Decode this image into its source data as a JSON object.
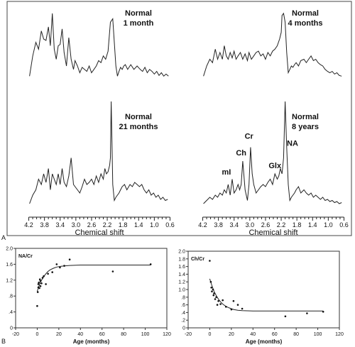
{
  "figure": {
    "panel_a_letter": "A",
    "panel_b_letter": "B"
  },
  "chart_data": [
    {
      "type": "line",
      "panel": "A",
      "xlabel": "Chemical shift",
      "xticks": [
        4.2,
        3.8,
        3.4,
        3.0,
        2.6,
        2.2,
        1.8,
        1.4,
        1.0,
        0.6
      ],
      "xtick_labels": [
        "4.2",
        "3.8",
        "3.4",
        "3.0",
        "2.6",
        "2.2",
        "1.8",
        "1.4",
        "1.0",
        "0.6"
      ],
      "xlim": [
        4.3,
        0.5
      ],
      "spectra": [
        {
          "label_line1": "Normal",
          "label_line2": "1 month",
          "x": [
            4.18,
            4.1,
            4.02,
            3.95,
            3.88,
            3.82,
            3.76,
            3.7,
            3.65,
            3.6,
            3.55,
            3.5,
            3.45,
            3.4,
            3.35,
            3.3,
            3.24,
            3.18,
            3.12,
            3.06,
            3.02,
            2.96,
            2.9,
            2.84,
            2.78,
            2.72,
            2.66,
            2.6,
            2.54,
            2.48,
            2.42,
            2.36,
            2.3,
            2.24,
            2.18,
            2.12,
            2.06,
            2.02,
            1.98,
            1.94,
            1.9,
            1.86,
            1.82,
            1.78,
            1.74,
            1.68,
            1.6,
            1.52,
            1.44,
            1.36,
            1.3,
            1.24,
            1.18,
            1.12,
            1.06,
            1.0,
            0.94,
            0.88,
            0.82,
            0.76,
            0.7,
            0.64
          ],
          "y": [
            0.05,
            0.35,
            0.55,
            0.45,
            0.72,
            0.6,
            0.58,
            0.78,
            0.5,
            0.98,
            0.45,
            0.3,
            0.5,
            0.52,
            0.75,
            0.4,
            0.2,
            0.62,
            0.3,
            0.15,
            0.28,
            0.2,
            0.1,
            0.18,
            0.15,
            0.12,
            0.2,
            0.1,
            0.15,
            0.2,
            0.28,
            0.25,
            0.35,
            0.3,
            0.42,
            0.85,
            0.9,
            0.55,
            0.2,
            0.05,
            0.12,
            0.18,
            0.15,
            0.2,
            0.22,
            0.15,
            0.22,
            0.15,
            0.2,
            0.15,
            0.12,
            0.18,
            0.1,
            0.15,
            0.12,
            0.08,
            0.12,
            0.06,
            0.1,
            0.05,
            0.08,
            0.05
          ]
        },
        {
          "label_line1": "Normal",
          "label_line2": "4 months",
          "x": [
            4.18,
            4.1,
            4.02,
            3.95,
            3.88,
            3.82,
            3.76,
            3.7,
            3.65,
            3.6,
            3.55,
            3.5,
            3.45,
            3.4,
            3.35,
            3.3,
            3.24,
            3.18,
            3.12,
            3.06,
            3.02,
            2.96,
            2.9,
            2.84,
            2.78,
            2.72,
            2.66,
            2.6,
            2.54,
            2.48,
            2.42,
            2.36,
            2.3,
            2.24,
            2.2,
            2.18,
            2.14,
            2.1,
            2.06,
            2.02,
            1.98,
            1.94,
            1.9,
            1.86,
            1.82,
            1.76,
            1.7,
            1.62,
            1.56,
            1.5,
            1.44,
            1.38,
            1.32,
            1.26,
            1.2,
            1.14,
            1.08,
            1.02,
            0.96,
            0.9,
            0.84,
            0.78,
            0.72,
            0.66
          ],
          "y": [
            0.05,
            0.2,
            0.3,
            0.25,
            0.45,
            0.3,
            0.4,
            0.3,
            0.5,
            0.35,
            0.3,
            0.4,
            0.32,
            0.42,
            0.3,
            0.35,
            0.4,
            0.3,
            0.38,
            0.28,
            0.4,
            0.3,
            0.35,
            0.4,
            0.42,
            0.35,
            0.38,
            0.3,
            0.4,
            0.35,
            0.42,
            0.45,
            0.5,
            0.6,
            0.7,
            0.95,
            0.98,
            0.85,
            0.4,
            0.1,
            0.15,
            0.2,
            0.18,
            0.22,
            0.25,
            0.2,
            0.28,
            0.3,
            0.25,
            0.3,
            0.35,
            0.28,
            0.3,
            0.25,
            0.22,
            0.2,
            0.15,
            0.12,
            0.1,
            0.12,
            0.08,
            0.1,
            0.06,
            0.05
          ]
        },
        {
          "label_line1": "Normal",
          "label_line2": "21 months",
          "x": [
            4.18,
            4.1,
            4.02,
            3.95,
            3.88,
            3.82,
            3.76,
            3.7,
            3.65,
            3.6,
            3.55,
            3.5,
            3.45,
            3.4,
            3.35,
            3.3,
            3.24,
            3.18,
            3.12,
            3.06,
            3.02,
            2.96,
            2.9,
            2.84,
            2.78,
            2.72,
            2.66,
            2.6,
            2.54,
            2.48,
            2.42,
            2.36,
            2.3,
            2.26,
            2.22,
            2.18,
            2.14,
            2.12,
            2.1,
            2.08,
            2.06,
            2.02,
            1.98,
            1.94,
            1.9,
            1.86,
            1.82,
            1.76,
            1.7,
            1.62,
            1.56,
            1.5,
            1.44,
            1.38,
            1.32,
            1.26,
            1.2,
            1.14,
            1.08,
            1.02,
            0.96,
            0.9,
            0.84,
            0.78,
            0.72,
            0.66
          ],
          "y": [
            0.02,
            0.1,
            0.15,
            0.25,
            0.2,
            0.3,
            0.22,
            0.35,
            0.15,
            0.3,
            0.25,
            0.2,
            0.3,
            0.2,
            0.35,
            0.22,
            0.18,
            0.28,
            0.45,
            0.2,
            0.18,
            0.15,
            0.12,
            0.18,
            0.25,
            0.2,
            0.22,
            0.25,
            0.2,
            0.28,
            0.22,
            0.3,
            0.25,
            0.35,
            0.3,
            0.32,
            0.38,
            0.45,
            0.98,
            0.6,
            0.2,
            0.05,
            0.08,
            0.1,
            0.12,
            0.15,
            0.18,
            0.2,
            0.15,
            0.2,
            0.18,
            0.22,
            0.2,
            0.18,
            0.2,
            0.15,
            0.12,
            0.15,
            0.1,
            0.12,
            0.08,
            0.1,
            0.06,
            0.08,
            0.05,
            0.06
          ]
        },
        {
          "label_line1": "Normal",
          "label_line2": "8 years",
          "x": [
            4.18,
            4.1,
            4.02,
            3.95,
            3.88,
            3.82,
            3.76,
            3.7,
            3.65,
            3.6,
            3.55,
            3.5,
            3.45,
            3.4,
            3.35,
            3.3,
            3.26,
            3.22,
            3.18,
            3.12,
            3.06,
            3.02,
            2.98,
            2.94,
            2.9,
            2.84,
            2.78,
            2.72,
            2.66,
            2.6,
            2.54,
            2.48,
            2.42,
            2.36,
            2.3,
            2.26,
            2.22,
            2.18,
            2.14,
            2.1,
            2.06,
            2.02,
            1.98,
            1.94,
            1.9,
            1.86,
            1.82,
            1.76,
            1.7,
            1.62,
            1.56,
            1.5,
            1.44,
            1.38,
            1.32,
            1.26,
            1.2,
            1.14,
            1.08,
            1.02,
            0.96,
            0.9,
            0.84,
            0.78,
            0.72,
            0.66
          ],
          "y": [
            0.02,
            0.05,
            0.08,
            0.06,
            0.1,
            0.08,
            0.12,
            0.1,
            0.15,
            0.12,
            0.2,
            0.1,
            0.25,
            0.12,
            0.15,
            0.2,
            0.15,
            0.2,
            0.42,
            0.15,
            0.05,
            0.2,
            0.55,
            0.3,
            0.2,
            0.12,
            0.15,
            0.18,
            0.2,
            0.18,
            0.22,
            0.25,
            0.2,
            0.3,
            0.25,
            0.28,
            0.35,
            0.3,
            0.45,
            0.98,
            0.55,
            0.2,
            0.05,
            0.08,
            0.1,
            0.12,
            0.15,
            0.18,
            0.12,
            0.15,
            0.12,
            0.1,
            0.12,
            0.08,
            0.1,
            0.08,
            0.06,
            0.08,
            0.05,
            0.06,
            0.04,
            0.05,
            0.03,
            0.04,
            0.02,
            0.03
          ]
        }
      ],
      "peak_labels": [
        {
          "text": "mI",
          "ppm": 3.56
        },
        {
          "text": "Ch",
          "ppm": 3.22
        },
        {
          "text": "Cr",
          "ppm": 3.02
        },
        {
          "text": "Glx",
          "ppm": 2.36
        },
        {
          "text": "NA",
          "ppm": 2.02
        }
      ]
    },
    {
      "type": "scatter",
      "panel": "B-left",
      "title": "NA/Cr",
      "xlabel": "Age (months)",
      "xlim": [
        -20,
        120
      ],
      "ylim": [
        0,
        2.0
      ],
      "xticks": [
        -20,
        0,
        20,
        40,
        60,
        80,
        100,
        120
      ],
      "yticks": [
        0,
        0.4,
        0.8,
        1.2,
        1.6,
        2.0
      ],
      "ytick_labels": [
        "0",
        ".4",
        ".8",
        "1.2",
        "1.6",
        "2.0"
      ],
      "points": [
        [
          0,
          0.55
        ],
        [
          0.5,
          0.9
        ],
        [
          1,
          1.02
        ],
        [
          1,
          1.1
        ],
        [
          1.5,
          1.14
        ],
        [
          2,
          1.0
        ],
        [
          2.5,
          1.22
        ],
        [
          3,
          1.05
        ],
        [
          3,
          1.18
        ],
        [
          4,
          1.12
        ],
        [
          5,
          1.26
        ],
        [
          6,
          1.3
        ],
        [
          8,
          1.1
        ],
        [
          10,
          1.36
        ],
        [
          14,
          1.4
        ],
        [
          18,
          1.6
        ],
        [
          21,
          1.52
        ],
        [
          25,
          1.56
        ],
        [
          30,
          1.72
        ],
        [
          70,
          1.42
        ],
        [
          105,
          1.6
        ]
      ],
      "fit": {
        "x": [
          0,
          2,
          4,
          6,
          8,
          10,
          12,
          15,
          18,
          22,
          26,
          30,
          40,
          50,
          60,
          80,
          105
        ],
        "y": [
          0.92,
          1.08,
          1.2,
          1.29,
          1.36,
          1.42,
          1.46,
          1.5,
          1.53,
          1.55,
          1.56,
          1.57,
          1.58,
          1.58,
          1.58,
          1.58,
          1.58
        ]
      }
    },
    {
      "type": "scatter",
      "panel": "B-right",
      "title": "Ch/Cr",
      "xlabel": "Age (months)",
      "xlim": [
        -20,
        120
      ],
      "ylim": [
        0,
        2.0
      ],
      "xticks": [
        -20,
        0,
        20,
        40,
        60,
        80,
        100,
        120
      ],
      "yticks": [
        0,
        0.2,
        0.4,
        0.6,
        0.8,
        1.0,
        1.2,
        1.4,
        1.6,
        1.8,
        2.0
      ],
      "ytick_labels": [
        "0",
        ".2",
        ".4",
        ".6",
        ".8",
        "1.0",
        "1.2",
        "1.4",
        "1.6",
        "1.8",
        "2.0"
      ],
      "points": [
        [
          0,
          1.75
        ],
        [
          1,
          1.2
        ],
        [
          1.5,
          1.05
        ],
        [
          2,
          0.95
        ],
        [
          3,
          1.0
        ],
        [
          3.5,
          0.85
        ],
        [
          4,
          0.9
        ],
        [
          5,
          0.75
        ],
        [
          6,
          0.8
        ],
        [
          7,
          0.6
        ],
        [
          8,
          0.7
        ],
        [
          10,
          0.62
        ],
        [
          12,
          0.72
        ],
        [
          15,
          0.55
        ],
        [
          20,
          0.48
        ],
        [
          22,
          0.7
        ],
        [
          26,
          0.6
        ],
        [
          30,
          0.5
        ],
        [
          70,
          0.3
        ],
        [
          90,
          0.38
        ],
        [
          105,
          0.42
        ]
      ],
      "fit": {
        "x": [
          0,
          2,
          4,
          6,
          8,
          10,
          12,
          15,
          18,
          22,
          26,
          30,
          40,
          50,
          60,
          80,
          105
        ],
        "y": [
          1.28,
          1.1,
          0.95,
          0.84,
          0.75,
          0.68,
          0.62,
          0.56,
          0.52,
          0.48,
          0.46,
          0.45,
          0.44,
          0.44,
          0.44,
          0.44,
          0.44
        ]
      }
    }
  ]
}
